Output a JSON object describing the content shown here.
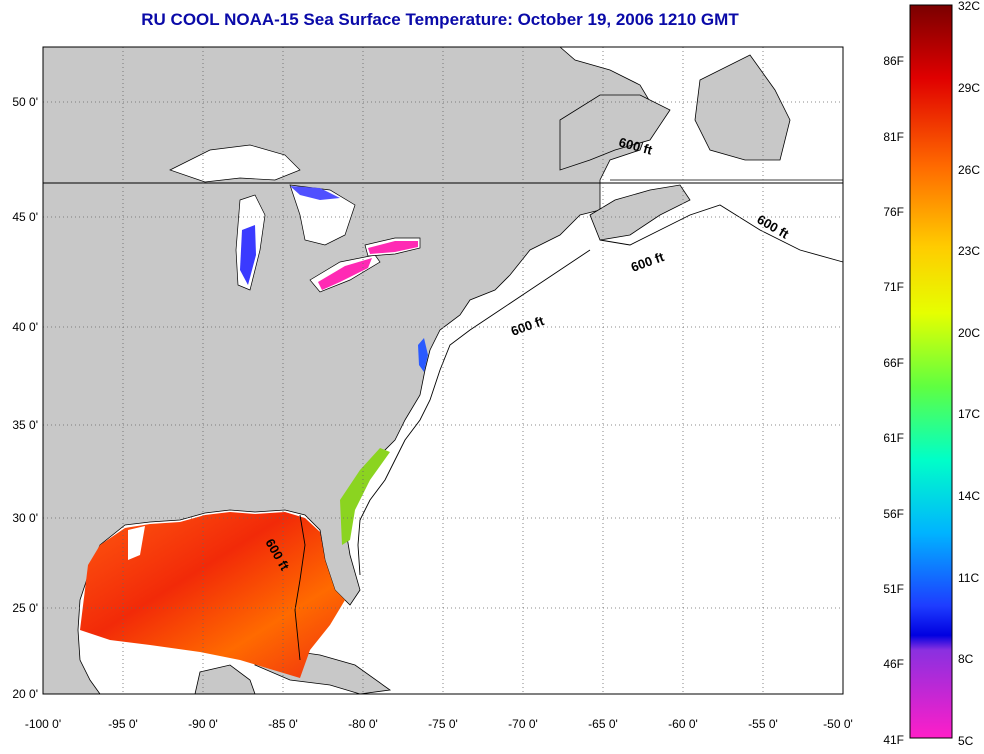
{
  "title": "RU COOL  NOAA-15  Sea Surface Temperature:  October 19, 2006 1210 GMT",
  "map": {
    "lon_ticks": [
      "-100 0'",
      "-95 0'",
      "-90 0'",
      "-85 0'",
      "-80 0'",
      "-75 0'",
      "-70 0'",
      "-65 0'",
      "-60 0'",
      "-55 0'",
      "-50 0'"
    ],
    "lat_ticks": [
      "50 0'",
      "45 0'",
      "40 0'",
      "35 0'",
      "30 0'",
      "25 0'",
      "20 0'"
    ],
    "isobath_label": "600 ft",
    "land_color": "#c8c8c8",
    "ocean_color": "#ffffff"
  },
  "colorbar": {
    "fahrenheit": [
      "86F",
      "81F",
      "76F",
      "71F",
      "66F",
      "61F",
      "56F",
      "51F",
      "46F",
      "41F"
    ],
    "celsius": [
      "32C",
      "29C",
      "26C",
      "23C",
      "20C",
      "17C",
      "14C",
      "11C",
      "8C",
      "5C"
    ]
  }
}
